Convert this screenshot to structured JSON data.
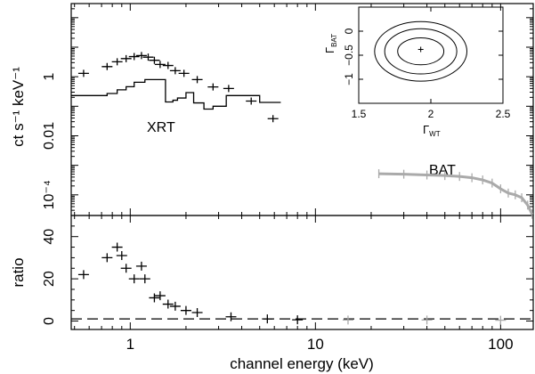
{
  "chart_data": [
    {
      "type": "scatter",
      "panel": "spectrum",
      "ylabel": "ct s⁻¹ keV⁻¹",
      "y_scale": "log",
      "x_scale": "log",
      "ylim": [
        2e-05,
        300
      ],
      "xlim": [
        0.48,
        150
      ],
      "yticks": [
        {
          "label": "1",
          "value": 1
        },
        {
          "label": "0.01",
          "value": 0.01
        },
        {
          "label": "10⁻⁴",
          "value": 0.0001
        }
      ],
      "annotations": [
        "XRT",
        "BAT"
      ],
      "series": [
        {
          "name": "XRT",
          "points": [
            [
              0.56,
              1.3
            ],
            [
              0.75,
              2.2
            ],
            [
              0.85,
              3.2
            ],
            [
              0.95,
              4.1
            ],
            [
              1.05,
              4.8
            ],
            [
              1.15,
              5.2
            ],
            [
              1.25,
              4.6
            ],
            [
              1.35,
              3.6
            ],
            [
              1.45,
              2.6
            ],
            [
              1.6,
              2.4
            ],
            [
              1.75,
              1.6
            ],
            [
              1.95,
              1.3
            ],
            [
              2.3,
              0.8
            ],
            [
              2.8,
              0.45
            ],
            [
              3.4,
              0.4
            ],
            [
              4.5,
              0.15
            ],
            [
              5.9,
              0.038
            ]
          ]
        },
        {
          "name": "XRT model",
          "step": [
            [
              0.48,
              0.23
            ],
            [
              0.6,
              0.23
            ],
            [
              0.75,
              0.27
            ],
            [
              0.85,
              0.36
            ],
            [
              0.95,
              0.46
            ],
            [
              1.05,
              0.65
            ],
            [
              1.2,
              0.8
            ],
            [
              1.35,
              0.8
            ],
            [
              1.55,
              0.14
            ],
            [
              1.7,
              0.16
            ],
            [
              1.8,
              0.19
            ],
            [
              2.0,
              0.29
            ],
            [
              2.2,
              0.13
            ],
            [
              2.5,
              0.08
            ],
            [
              2.8,
              0.1
            ],
            [
              3.3,
              0.23
            ],
            [
              4.0,
              0.23
            ],
            [
              5.0,
              0.135
            ],
            [
              6.5,
              0.135
            ]
          ]
        },
        {
          "name": "BAT",
          "points": [
            [
              22,
              0.00052
            ],
            [
              30,
              0.0005
            ],
            [
              40,
              0.00047
            ],
            [
              50,
              0.00045
            ],
            [
              60,
              0.00042
            ],
            [
              70,
              0.00038
            ],
            [
              80,
              0.00032
            ],
            [
              90,
              0.00025
            ],
            [
              100,
              0.00016
            ],
            [
              110,
              0.000115
            ],
            [
              120,
              0.0001
            ],
            [
              130,
              8e-05
            ],
            [
              140,
              4.5e-05
            ],
            [
              148,
              2.2e-05
            ]
          ]
        }
      ]
    },
    {
      "type": "scatter",
      "panel": "inset",
      "xlabel": "ΓWT",
      "ylabel": "ΓBAT",
      "xlim": [
        1.5,
        2.5
      ],
      "ylim": [
        -1.5,
        0.5
      ],
      "xticks": [
        "1.5",
        "2",
        "2.5"
      ],
      "yticks": [
        "0",
        "−0.5",
        "−1"
      ],
      "best_fit": [
        1.93,
        -0.38
      ],
      "contours": [
        {
          "cx": 1.93,
          "cy": -0.42,
          "rx": 0.16,
          "ry": 0.28
        },
        {
          "cx": 1.93,
          "cy": -0.42,
          "rx": 0.25,
          "ry": 0.47
        },
        {
          "cx": 1.93,
          "cy": -0.42,
          "rx": 0.32,
          "ry": 0.62
        }
      ]
    },
    {
      "type": "scatter",
      "panel": "ratio",
      "ylabel": "ratio",
      "xlabel": "channel energy (keV)",
      "x_scale": "log",
      "xlim": [
        0.48,
        150
      ],
      "ylim": [
        -4,
        50
      ],
      "yticks": [
        0,
        20,
        40
      ],
      "xticks": [
        {
          "label": "1",
          "value": 1
        },
        {
          "label": "10",
          "value": 10
        },
        {
          "label": "100",
          "value": 100
        }
      ],
      "reference_line": 1,
      "points": [
        [
          0.56,
          22
        ],
        [
          0.75,
          30
        ],
        [
          0.85,
          35
        ],
        [
          0.9,
          31
        ],
        [
          0.95,
          25
        ],
        [
          1.05,
          20
        ],
        [
          1.15,
          26
        ],
        [
          1.2,
          20
        ],
        [
          1.35,
          11
        ],
        [
          1.45,
          12
        ],
        [
          1.6,
          8
        ],
        [
          1.75,
          7
        ],
        [
          2.0,
          5
        ],
        [
          2.3,
          4
        ],
        [
          3.5,
          2
        ],
        [
          5.5,
          1
        ],
        [
          8,
          0.6
        ],
        [
          15,
          0.5
        ],
        [
          40,
          0.5
        ],
        [
          100,
          0.4
        ]
      ]
    }
  ]
}
